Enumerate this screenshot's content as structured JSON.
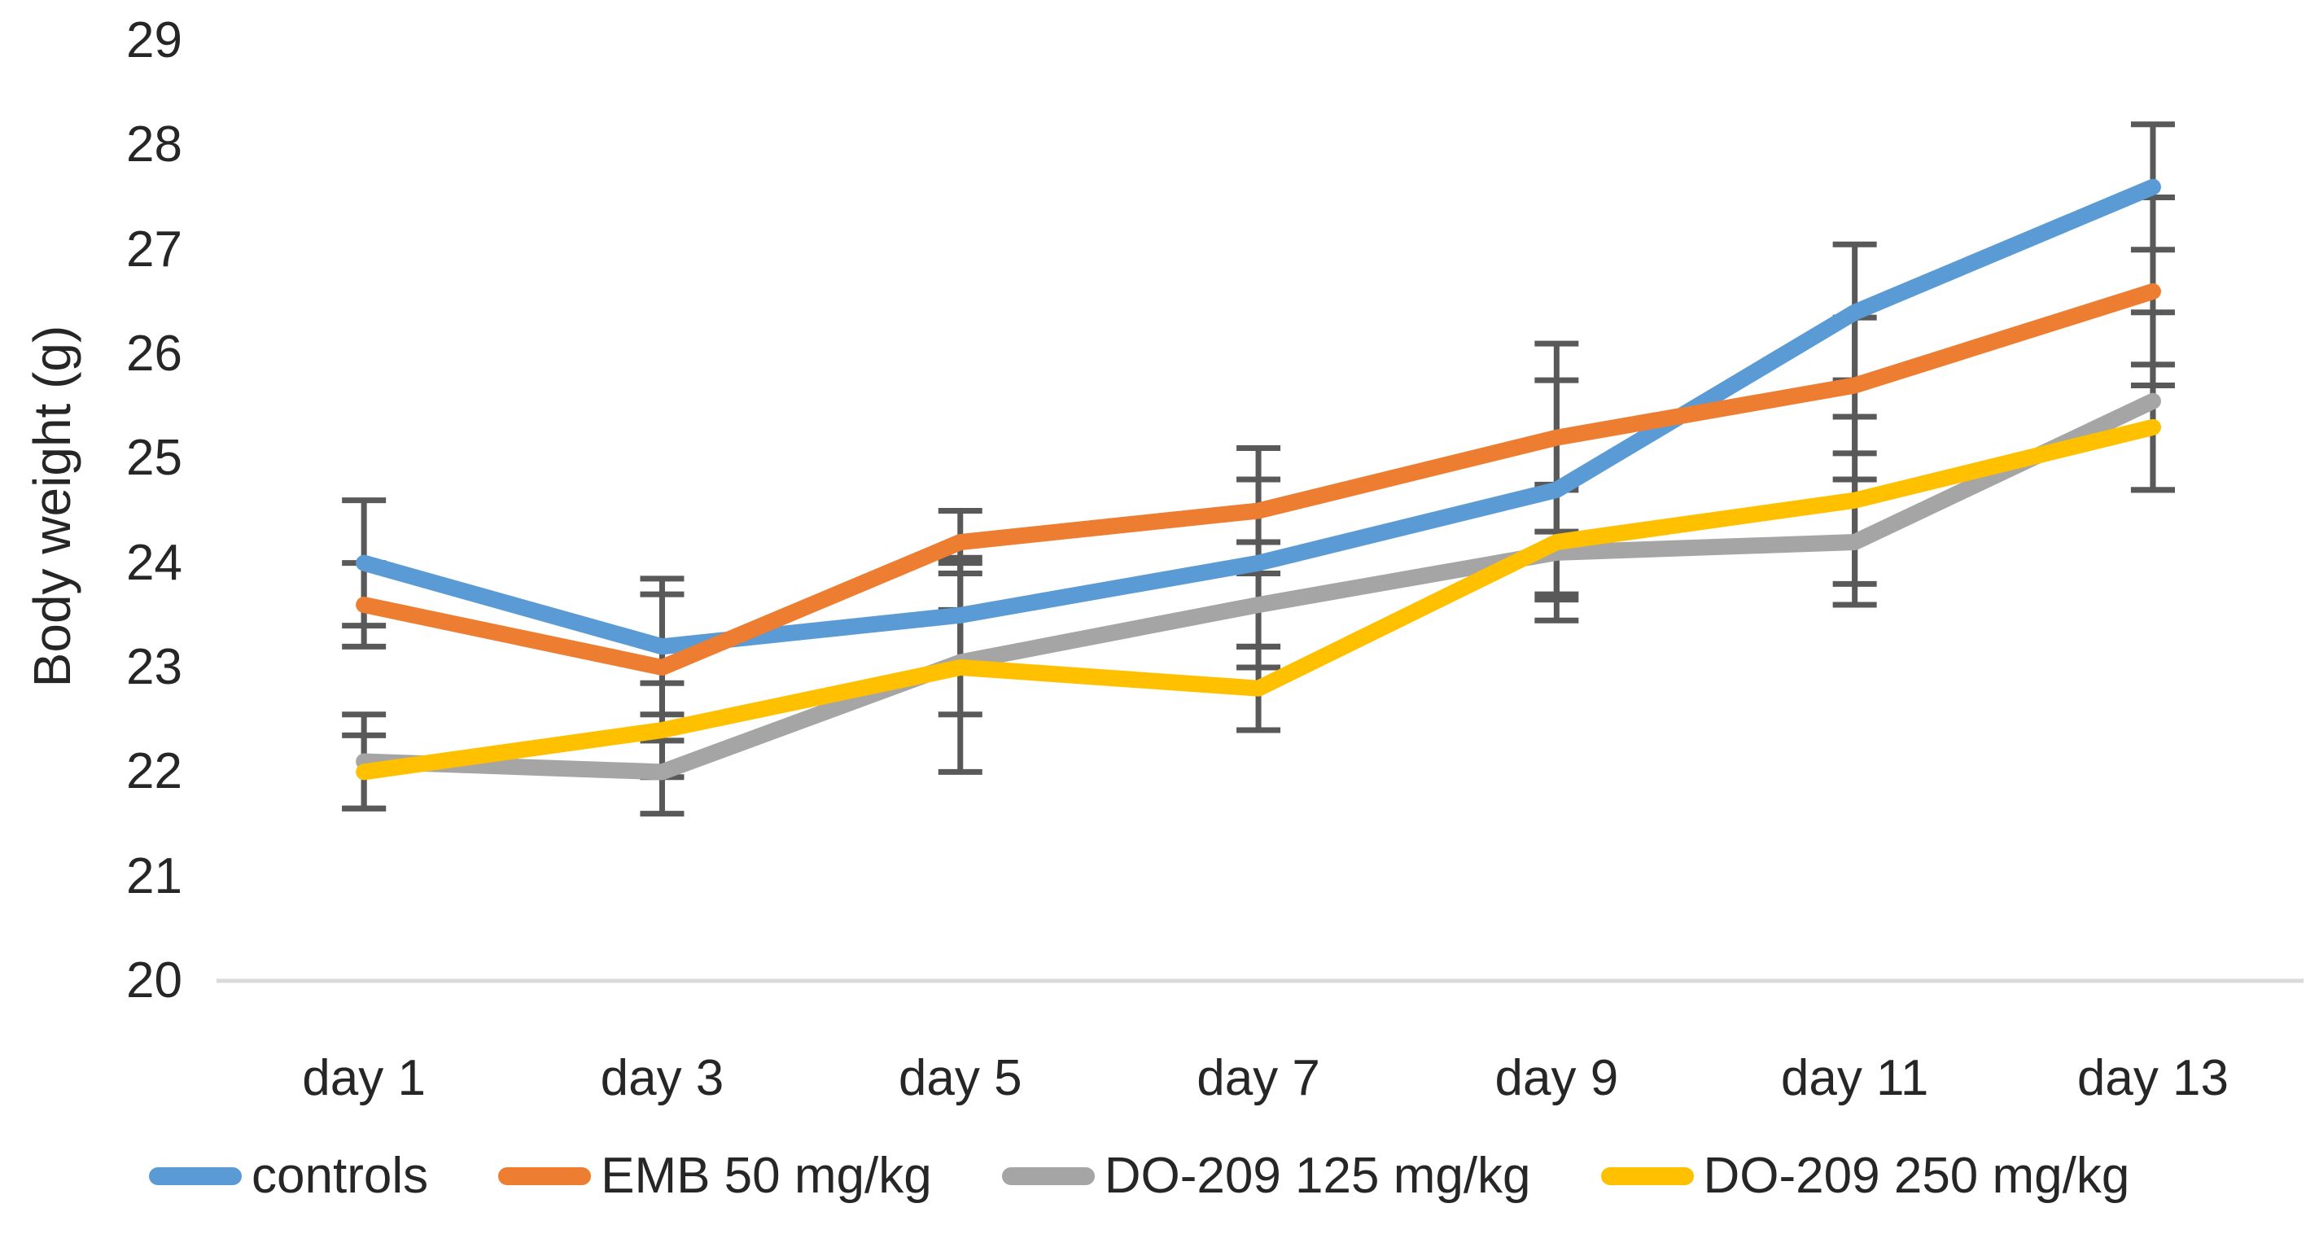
{
  "chart_data": {
    "type": "line",
    "title": "",
    "ylabel": "Body weight (g)",
    "xlabel": "",
    "categories": [
      "day 1",
      "day 3",
      "day 5",
      "day 7",
      "day 9",
      "day 11",
      "day 13"
    ],
    "y_ticks": [
      29,
      28,
      27,
      26,
      25,
      24,
      23,
      22,
      21,
      20
    ],
    "ylim": [
      20,
      29
    ],
    "grid": false,
    "legend_position": "bottom",
    "error_bars": true,
    "colors": {
      "error_bar": "#595959",
      "axis_line": "#D9D9D9",
      "text": "#262626",
      "background": "#FFFFFF"
    },
    "series": [
      {
        "name": "controls",
        "color": "#5B9BD5",
        "values": [
          24.0,
          23.2,
          23.5,
          24.0,
          24.7,
          26.4,
          27.6
        ],
        "errors": [
          0.6,
          0.65,
          0.55,
          0.8,
          1.05,
          0.65,
          0.6
        ]
      },
      {
        "name": "EMB 50 mg/kg",
        "color": "#ED7D31",
        "values": [
          23.6,
          23.0,
          24.2,
          24.5,
          25.2,
          25.7,
          26.6
        ],
        "errors": [
          0.4,
          0.7,
          0.3,
          0.6,
          0.9,
          0.65,
          0.9
        ]
      },
      {
        "name": "DO-209 125 mg/kg",
        "color": "#A5A5A5",
        "values": [
          22.1,
          22.0,
          23.05,
          23.6,
          24.1,
          24.2,
          25.55
        ],
        "errors": [
          0.45,
          0.4,
          0.5,
          0.6,
          0.65,
          0.6,
          0.85
        ]
      },
      {
        "name": "DO-209 250 mg/kg",
        "color": "#FFC000",
        "values": [
          22.0,
          22.4,
          23.0,
          22.8,
          24.2,
          24.6,
          25.3
        ],
        "errors": [
          0.35,
          0.45,
          1.0,
          0.4,
          0.5,
          0.8,
          0.6
        ]
      }
    ]
  }
}
